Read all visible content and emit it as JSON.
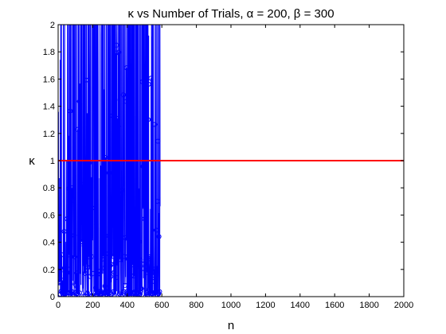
{
  "chart_data": {
    "type": "line",
    "title": "κ vs Number of Trials, α = 200, β = 300",
    "xlabel": "n",
    "ylabel": "κ",
    "xlim": [
      0,
      2000
    ],
    "ylim": [
      0,
      2
    ],
    "xticks": [
      0,
      200,
      400,
      600,
      800,
      1000,
      1200,
      1400,
      1600,
      1800,
      2000
    ],
    "yticks": [
      0,
      0.2,
      0.4,
      0.6,
      0.8,
      1,
      1.2,
      1.4,
      1.6,
      1.8,
      2
    ],
    "xtick_labels": [
      "0",
      "200",
      "400",
      "600",
      "800",
      "1000",
      "1200",
      "1400",
      "1600",
      "1800",
      "2000"
    ],
    "ytick_labels": [
      "0",
      "0.2",
      "0.4",
      "0.6",
      "0.8",
      "1",
      "1.2",
      "1.4",
      "1.6",
      "1.8",
      "2"
    ],
    "grid": false,
    "legend": "none",
    "series": [
      {
        "color": "#0000ff",
        "marker": "circle",
        "x_range": [
          1,
          590
        ],
        "y_range": [
          0,
          2
        ]
      },
      {
        "color": "#ff0000",
        "type": "hline",
        "y": 1
      }
    ]
  }
}
